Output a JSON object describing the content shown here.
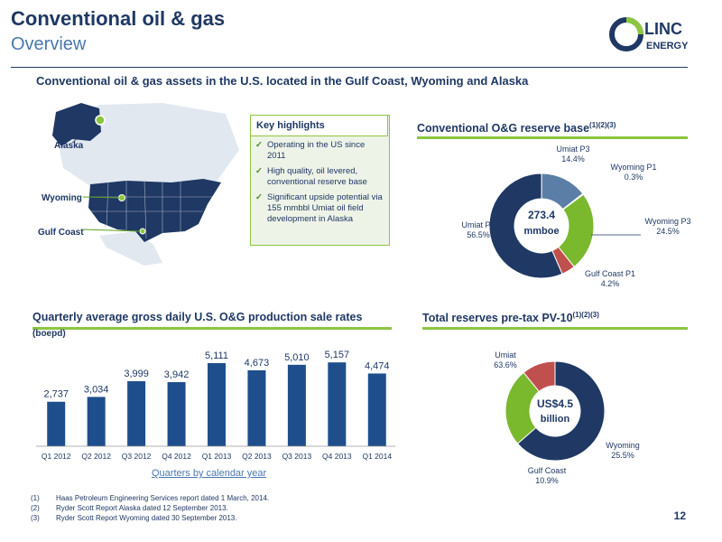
{
  "header": {
    "title": "Conventional oil & gas",
    "subtitle": "Overview",
    "headline": "Conventional oil & gas assets in the U.S. located in the Gulf Coast, Wyoming and Alaska"
  },
  "logo": {
    "text": "LINC ENERGY",
    "colors": {
      "ring_blue": "#1f3864",
      "ring_green": "#8cc63f"
    }
  },
  "map": {
    "labels": {
      "alaska": "Alaska",
      "wyoming": "Wyoming",
      "gulf_coast": "Gulf Coast"
    }
  },
  "key_highlights": {
    "title": "Key highlights",
    "items": [
      "Operating in the US since 2011",
      "High quality, oil levered, conventional reserve base",
      "Significant upside potential via 155 mmbbl Umiat oil field development in Alaska"
    ]
  },
  "reserve_base": {
    "title": "Conventional O&G reserve base",
    "title_sup": "(1)(2)(3)",
    "center_line1": "273.4",
    "center_line2": "mmboe",
    "labels": {
      "umiat_p3": [
        "Umiat P3",
        "14.4%"
      ],
      "wyoming_p1": [
        "Wyoming P1",
        "0.3%"
      ],
      "wyoming_p3": [
        "Wyoming P3",
        "24.5%"
      ],
      "gulf_coast_p1": [
        "Gulf Coast P1",
        "4.2%"
      ],
      "umiat_p2": [
        "Umiat P2",
        "56.5%"
      ]
    }
  },
  "pv10": {
    "title": "Total reserves pre-tax PV-10",
    "title_sup": "(1)(2)(3)",
    "center_line1": "US$4.5",
    "center_line2": "billion",
    "labels": {
      "umiat": [
        "Umiat",
        "63.6%"
      ],
      "wyoming": [
        "Wyoming",
        "25.5%"
      ],
      "gulf_coast": [
        "Gulf Coast",
        "10.9%"
      ]
    }
  },
  "production": {
    "title": "Quarterly average gross daily U.S. O&G production sale rates",
    "unit": "(boepd)",
    "xaxis_title": "Quarters by calendar year"
  },
  "chart_data": [
    {
      "type": "bar",
      "categories": [
        "Q1 2012",
        "Q2 2012",
        "Q3 2012",
        "Q4 2012",
        "Q1 2013",
        "Q2 2013",
        "Q3 2013",
        "Q4 2013",
        "Q1 2014"
      ],
      "values": [
        2737,
        3034,
        3999,
        3942,
        5111,
        4673,
        5010,
        5157,
        4474
      ],
      "data_labels": [
        "2,737",
        "3,034",
        "3,999",
        "3,942",
        "5,111",
        "4,673",
        "5,010",
        "5,157",
        "4,474"
      ],
      "title": "Quarterly average gross daily U.S. O&G production sale rates",
      "xlabel": "Quarters by calendar year",
      "ylabel": "(boepd)",
      "ylim": [
        0,
        6000
      ],
      "color": "#1f4e8c"
    },
    {
      "type": "pie",
      "title": "Conventional O&G reserve base",
      "categories": [
        "Umiat P2",
        "Umiat P3",
        "Wyoming P1",
        "Wyoming P3",
        "Gulf Coast P1"
      ],
      "values": [
        56.5,
        14.4,
        0.3,
        24.5,
        4.2
      ],
      "colors": [
        "#1f3864",
        "#5a7ea6",
        "#c8d7ea",
        "#7ab82e",
        "#c0504d"
      ]
    },
    {
      "type": "pie",
      "title": "Total reserves pre-tax PV-10",
      "categories": [
        "Umiat",
        "Wyoming",
        "Gulf Coast"
      ],
      "values": [
        63.6,
        25.5,
        10.9
      ],
      "colors": [
        "#1f3864",
        "#7ab82e",
        "#c0504d"
      ]
    }
  ],
  "footnotes": [
    {
      "num": "(1)",
      "text": "Haas Petroleum Engineering Services report dated 1 March, 2014."
    },
    {
      "num": "(2)",
      "text": "Ryder Scott Report Alaska dated 12 September 2013."
    },
    {
      "num": "(3)",
      "text": "Ryder Scott Report Wyoming dated 30 September 2013."
    }
  ],
  "page_number": "12"
}
